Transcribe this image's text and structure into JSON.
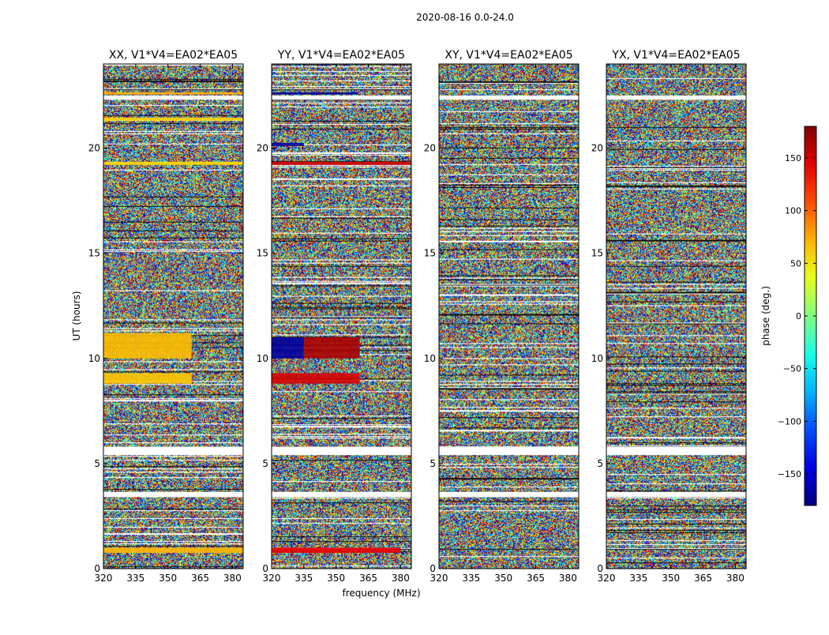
{
  "chart_data": {
    "type": "heatmap",
    "title": "2020-08-16 0.0-24.0",
    "xlabel": "frequency (MHz)",
    "ylabel": "UT (hours)",
    "xlim": [
      320,
      385
    ],
    "ylim": [
      0,
      24
    ],
    "xticks": [
      320,
      335,
      350,
      365,
      380
    ],
    "yticks": [
      0,
      5,
      10,
      15,
      20
    ],
    "colorbar": {
      "label": "phase (deg.)",
      "range": [
        -180,
        180
      ],
      "ticks": [
        150,
        100,
        50,
        0,
        -50,
        -100,
        -150
      ],
      "colormap": "jet"
    },
    "panels": [
      {
        "title": "XX, V1*V4=EA02*EA05"
      },
      {
        "title": "YY, V1*V4=EA02*EA05"
      },
      {
        "title": "XY, V1*V4=EA02*EA05"
      },
      {
        "title": "YX, V1*V4=EA02*EA05"
      }
    ],
    "flagged_hours": [
      [
        3.4,
        3.65
      ],
      [
        5.4,
        5.8
      ],
      [
        22.3,
        22.5
      ]
    ],
    "coherent_regions": [
      {
        "panel": 0,
        "hours": [
          0.75,
          1.0
        ],
        "freq": [
          320,
          385
        ],
        "phase": 70
      },
      {
        "panel": 0,
        "hours": [
          8.8,
          9.3
        ],
        "freq": [
          320,
          361
        ],
        "phase": 65
      },
      {
        "panel": 0,
        "hours": [
          10.0,
          11.2
        ],
        "freq": [
          320,
          361
        ],
        "phase": 68
      },
      {
        "panel": 0,
        "hours": [
          19.2,
          19.35
        ],
        "freq": [
          320,
          385
        ],
        "phase": 60
      },
      {
        "panel": 0,
        "hours": [
          21.3,
          21.45
        ],
        "freq": [
          320,
          385
        ],
        "phase": 60
      },
      {
        "panel": 0,
        "hours": [
          22.55,
          22.65
        ],
        "freq": [
          320,
          385
        ],
        "phase": 75
      },
      {
        "panel": 1,
        "hours": [
          0.75,
          1.0
        ],
        "freq": [
          320,
          380
        ],
        "phase": 140
      },
      {
        "panel": 1,
        "hours": [
          8.8,
          9.3
        ],
        "freq": [
          320,
          361
        ],
        "phase": 150
      },
      {
        "panel": 1,
        "hours": [
          10.0,
          11.0
        ],
        "freq": [
          320,
          335
        ],
        "phase": -170
      },
      {
        "panel": 1,
        "hours": [
          10.0,
          11.0
        ],
        "freq": [
          335,
          361
        ],
        "phase": 165
      },
      {
        "panel": 1,
        "hours": [
          19.2,
          19.35
        ],
        "freq": [
          320,
          385
        ],
        "phase": 150
      },
      {
        "panel": 1,
        "hours": [
          20.1,
          20.25
        ],
        "freq": [
          320,
          335
        ],
        "phase": -170
      },
      {
        "panel": 1,
        "hours": [
          22.55,
          22.65
        ],
        "freq": [
          320,
          360
        ],
        "phase": -170
      }
    ]
  }
}
